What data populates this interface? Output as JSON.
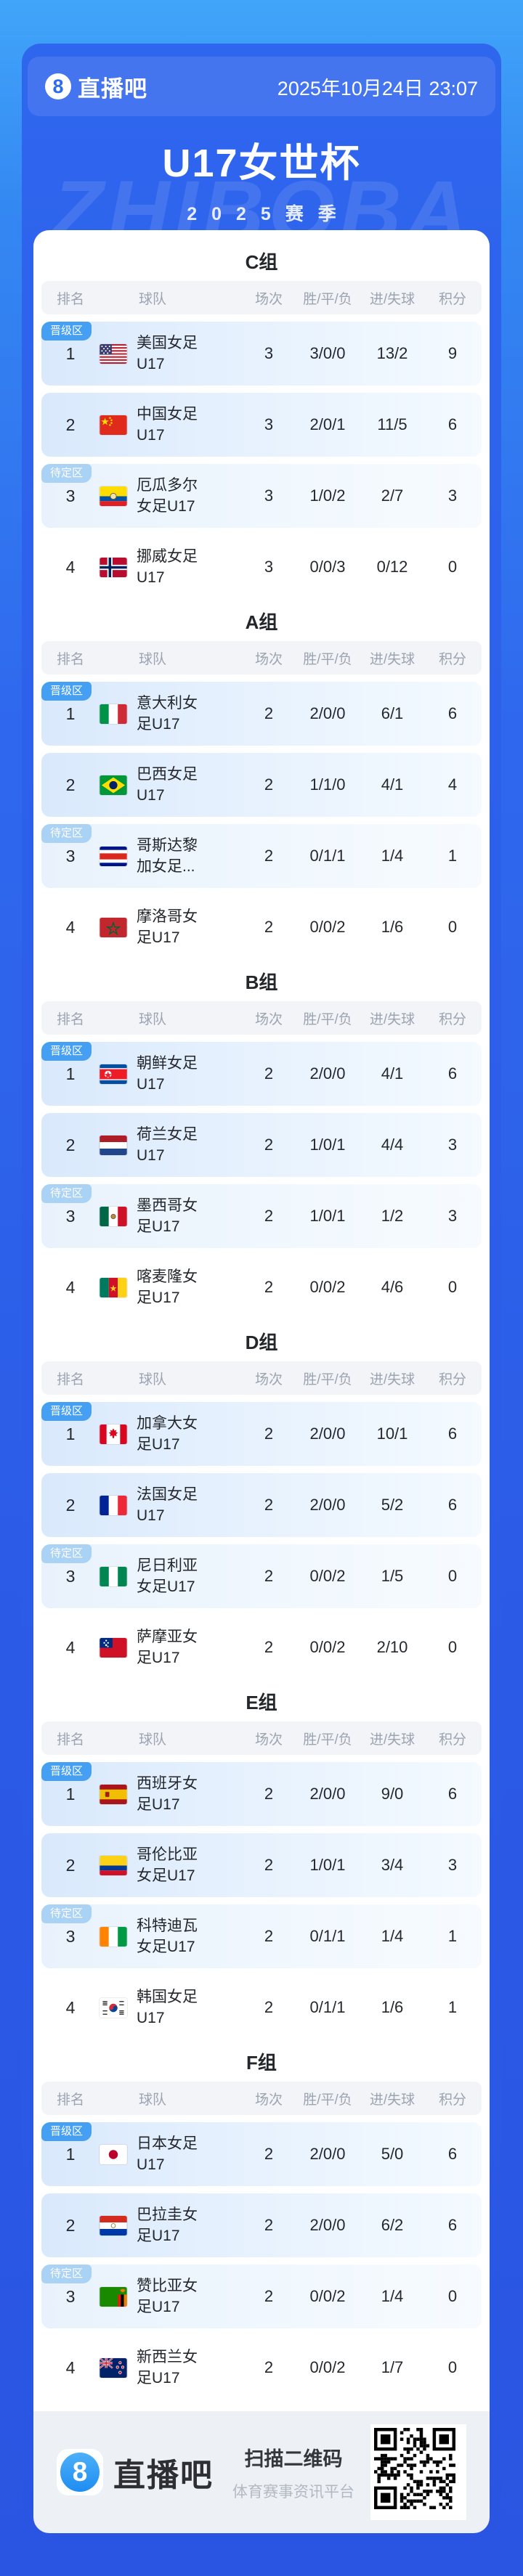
{
  "topbar": {
    "logo_char": "8",
    "brand": "直播吧",
    "datetime": "2025年10月24日 23:07"
  },
  "header": {
    "title": "U17女世杯",
    "season": "2025赛季",
    "watermark": "ZHIBOBA"
  },
  "table_headers": [
    "排名",
    "球队",
    "场次",
    "胜/平/负",
    "进/失球",
    "积分"
  ],
  "zone_labels": {
    "promo": "晋级区",
    "pending": "待定区"
  },
  "accent_colors": {
    "promo_badge": "#45a0f3",
    "pending_badge": "#a9d2f5",
    "card_blue": "#2c5ce8"
  },
  "groups": [
    {
      "name": "C组",
      "rows": [
        {
          "zone": "promo",
          "highlight": "promo",
          "rank": "1",
          "flag": "us",
          "team": "美国女足U17",
          "played": "3",
          "wdl": "3/0/0",
          "goals": "13/2",
          "points": "9"
        },
        {
          "zone": null,
          "highlight": "promo",
          "rank": "2",
          "flag": "cn",
          "team": "中国女足U17",
          "played": "3",
          "wdl": "2/0/1",
          "goals": "11/5",
          "points": "6"
        },
        {
          "zone": "pending",
          "highlight": "pending",
          "rank": "3",
          "flag": "ec",
          "team": "厄瓜多尔女足U17",
          "played": "3",
          "wdl": "1/0/2",
          "goals": "2/7",
          "points": "3"
        },
        {
          "zone": null,
          "highlight": "none",
          "rank": "4",
          "flag": "no",
          "team": "挪威女足U17",
          "played": "3",
          "wdl": "0/0/3",
          "goals": "0/12",
          "points": "0"
        }
      ]
    },
    {
      "name": "A组",
      "rows": [
        {
          "zone": "promo",
          "highlight": "promo",
          "rank": "1",
          "flag": "it",
          "team": "意大利女足U17",
          "played": "2",
          "wdl": "2/0/0",
          "goals": "6/1",
          "points": "6"
        },
        {
          "zone": null,
          "highlight": "promo",
          "rank": "2",
          "flag": "br",
          "team": "巴西女足U17",
          "played": "2",
          "wdl": "1/1/0",
          "goals": "4/1",
          "points": "4"
        },
        {
          "zone": "pending",
          "highlight": "pending",
          "rank": "3",
          "flag": "cr",
          "team": "哥斯达黎加女足...",
          "played": "2",
          "wdl": "0/1/1",
          "goals": "1/4",
          "points": "1"
        },
        {
          "zone": null,
          "highlight": "none",
          "rank": "4",
          "flag": "ma",
          "team": "摩洛哥女足U17",
          "played": "2",
          "wdl": "0/0/2",
          "goals": "1/6",
          "points": "0"
        }
      ]
    },
    {
      "name": "B组",
      "rows": [
        {
          "zone": "promo",
          "highlight": "promo",
          "rank": "1",
          "flag": "kp",
          "team": "朝鲜女足U17",
          "played": "2",
          "wdl": "2/0/0",
          "goals": "4/1",
          "points": "6"
        },
        {
          "zone": null,
          "highlight": "promo",
          "rank": "2",
          "flag": "nl",
          "team": "荷兰女足U17",
          "played": "2",
          "wdl": "1/0/1",
          "goals": "4/4",
          "points": "3"
        },
        {
          "zone": "pending",
          "highlight": "pending",
          "rank": "3",
          "flag": "mx",
          "team": "墨西哥女足U17",
          "played": "2",
          "wdl": "1/0/1",
          "goals": "1/2",
          "points": "3"
        },
        {
          "zone": null,
          "highlight": "none",
          "rank": "4",
          "flag": "cm",
          "team": "喀麦隆女足U17",
          "played": "2",
          "wdl": "0/0/2",
          "goals": "4/6",
          "points": "0"
        }
      ]
    },
    {
      "name": "D组",
      "rows": [
        {
          "zone": "promo",
          "highlight": "promo",
          "rank": "1",
          "flag": "ca",
          "team": "加拿大女足U17",
          "played": "2",
          "wdl": "2/0/0",
          "goals": "10/1",
          "points": "6"
        },
        {
          "zone": null,
          "highlight": "promo",
          "rank": "2",
          "flag": "fr",
          "team": "法国女足U17",
          "played": "2",
          "wdl": "2/0/0",
          "goals": "5/2",
          "points": "6"
        },
        {
          "zone": "pending",
          "highlight": "pending",
          "rank": "3",
          "flag": "ng",
          "team": "尼日利亚女足U17",
          "played": "2",
          "wdl": "0/0/2",
          "goals": "1/5",
          "points": "0"
        },
        {
          "zone": null,
          "highlight": "none",
          "rank": "4",
          "flag": "ws",
          "team": "萨摩亚女足U17",
          "played": "2",
          "wdl": "0/0/2",
          "goals": "2/10",
          "points": "0"
        }
      ]
    },
    {
      "name": "E组",
      "rows": [
        {
          "zone": "promo",
          "highlight": "promo",
          "rank": "1",
          "flag": "es",
          "team": "西班牙女足U17",
          "played": "2",
          "wdl": "2/0/0",
          "goals": "9/0",
          "points": "6"
        },
        {
          "zone": null,
          "highlight": "promo",
          "rank": "2",
          "flag": "co",
          "team": "哥伦比亚女足U17",
          "played": "2",
          "wdl": "1/0/1",
          "goals": "3/4",
          "points": "3"
        },
        {
          "zone": "pending",
          "highlight": "pending",
          "rank": "3",
          "flag": "ci",
          "team": "科特迪瓦女足U17",
          "played": "2",
          "wdl": "0/1/1",
          "goals": "1/4",
          "points": "1"
        },
        {
          "zone": null,
          "highlight": "none",
          "rank": "4",
          "flag": "kr",
          "team": "韩国女足U17",
          "played": "2",
          "wdl": "0/1/1",
          "goals": "1/6",
          "points": "1"
        }
      ]
    },
    {
      "name": "F组",
      "rows": [
        {
          "zone": "promo",
          "highlight": "promo",
          "rank": "1",
          "flag": "jp",
          "team": "日本女足U17",
          "played": "2",
          "wdl": "2/0/0",
          "goals": "5/0",
          "points": "6"
        },
        {
          "zone": null,
          "highlight": "promo",
          "rank": "2",
          "flag": "py",
          "team": "巴拉圭女足U17",
          "played": "2",
          "wdl": "2/0/0",
          "goals": "6/2",
          "points": "6"
        },
        {
          "zone": "pending",
          "highlight": "pending",
          "rank": "3",
          "flag": "zm",
          "team": "赞比亚女足U17",
          "played": "2",
          "wdl": "0/0/2",
          "goals": "1/4",
          "points": "0"
        },
        {
          "zone": null,
          "highlight": "none",
          "rank": "4",
          "flag": "nz",
          "team": "新西兰女足U17",
          "played": "2",
          "wdl": "0/0/2",
          "goals": "1/7",
          "points": "0"
        }
      ]
    }
  ],
  "footer": {
    "logo_char": "8",
    "brand": "直播吧",
    "qr_title": "扫描二维码",
    "qr_subtitle": "体育赛事资讯平台"
  }
}
